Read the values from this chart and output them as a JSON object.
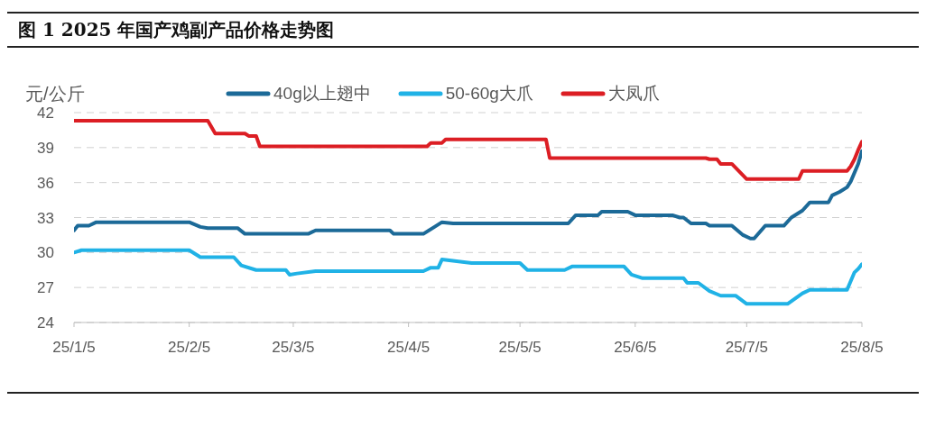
{
  "chart_data": {
    "type": "line",
    "title": "图 1 2025 年国产鸡副产品价格走势图",
    "ylabel": "元/公斤",
    "xlim": [
      "2025-01-05",
      "2025-08-05"
    ],
    "xticks": [
      {
        "value": "2025-01-05",
        "label": "25/1/5"
      },
      {
        "value": "2025-02-05",
        "label": "25/2/5"
      },
      {
        "value": "2025-03-05",
        "label": "25/3/5"
      },
      {
        "value": "2025-04-05",
        "label": "25/4/5"
      },
      {
        "value": "2025-05-05",
        "label": "25/5/5"
      },
      {
        "value": "2025-06-05",
        "label": "25/6/5"
      },
      {
        "value": "2025-07-05",
        "label": "25/7/5"
      },
      {
        "value": "2025-08-05",
        "label": "25/8/5"
      }
    ],
    "ylim": [
      24,
      42
    ],
    "yticks": [
      24,
      27,
      30,
      33,
      36,
      39,
      42
    ],
    "grid": "y",
    "legend": "top",
    "marker": "none",
    "line_style": "solid",
    "series": [
      {
        "name": "40g以上翅中",
        "color": "#1c6a98",
        "x": [
          "2025-01-05",
          "2025-01-06",
          "2025-01-09",
          "2025-01-11",
          "2025-02-05",
          "2025-02-08",
          "2025-02-10",
          "2025-02-18",
          "2025-02-20",
          "2025-03-09",
          "2025-03-11",
          "2025-03-31",
          "2025-04-01",
          "2025-04-09",
          "2025-04-12",
          "2025-04-14",
          "2025-04-17",
          "2025-05-18",
          "2025-05-20",
          "2025-05-26",
          "2025-05-27",
          "2025-06-03",
          "2025-06-05",
          "2025-06-15",
          "2025-06-17",
          "2025-06-18",
          "2025-06-20",
          "2025-06-24",
          "2025-06-25",
          "2025-07-01",
          "2025-07-04",
          "2025-07-06",
          "2025-07-07",
          "2025-07-10",
          "2025-07-15",
          "2025-07-17",
          "2025-07-20",
          "2025-07-22",
          "2025-07-27",
          "2025-07-28",
          "2025-07-30",
          "2025-08-01",
          "2025-08-02",
          "2025-08-04",
          "2025-08-05"
        ],
        "values": [
          31.9,
          32.3,
          32.3,
          32.6,
          32.6,
          32.2,
          32.1,
          32.1,
          31.6,
          31.6,
          31.9,
          31.9,
          31.6,
          31.6,
          32.2,
          32.6,
          32.5,
          32.5,
          33.2,
          33.2,
          33.5,
          33.5,
          33.2,
          33.2,
          33.0,
          33.0,
          32.5,
          32.5,
          32.3,
          32.3,
          31.5,
          31.2,
          31.2,
          32.3,
          32.3,
          33.0,
          33.6,
          34.3,
          34.3,
          34.9,
          35.2,
          35.6,
          36.1,
          37.6,
          38.7
        ]
      },
      {
        "name": "50-60g大爪",
        "color": "#20b2e6",
        "x": [
          "2025-01-05",
          "2025-01-07",
          "2025-02-05",
          "2025-02-08",
          "2025-02-17",
          "2025-02-19",
          "2025-02-23",
          "2025-03-03",
          "2025-03-04",
          "2025-03-06",
          "2025-03-11",
          "2025-04-09",
          "2025-04-11",
          "2025-04-13",
          "2025-04-14",
          "2025-04-17",
          "2025-04-22",
          "2025-05-05",
          "2025-05-07",
          "2025-05-17",
          "2025-05-19",
          "2025-06-02",
          "2025-06-04",
          "2025-06-07",
          "2025-06-18",
          "2025-06-19",
          "2025-06-22",
          "2025-06-25",
          "2025-06-28",
          "2025-07-02",
          "2025-07-05",
          "2025-07-16",
          "2025-07-20",
          "2025-07-22",
          "2025-08-01",
          "2025-08-03",
          "2025-08-04",
          "2025-08-05"
        ],
        "values": [
          30.0,
          30.2,
          30.2,
          29.6,
          29.6,
          28.9,
          28.5,
          28.5,
          28.1,
          28.2,
          28.4,
          28.4,
          28.7,
          28.7,
          29.4,
          29.3,
          29.1,
          29.1,
          28.5,
          28.5,
          28.8,
          28.8,
          28.1,
          27.8,
          27.8,
          27.4,
          27.4,
          26.7,
          26.3,
          26.3,
          25.6,
          25.6,
          26.5,
          26.8,
          26.8,
          28.3,
          28.6,
          29.0
        ]
      },
      {
        "name": "大凤爪",
        "color": "#dc1e24",
        "x": [
          "2025-01-05",
          "2025-02-10",
          "2025-02-12",
          "2025-02-20",
          "2025-02-21",
          "2025-02-23",
          "2025-02-24",
          "2025-04-10",
          "2025-04-11",
          "2025-04-14",
          "2025-04-15",
          "2025-05-12",
          "2025-05-13",
          "2025-06-24",
          "2025-06-25",
          "2025-06-27",
          "2025-06-28",
          "2025-07-01",
          "2025-07-05",
          "2025-07-19",
          "2025-07-20",
          "2025-08-01",
          "2025-08-02",
          "2025-08-03",
          "2025-08-04",
          "2025-08-05"
        ],
        "values": [
          41.3,
          41.3,
          40.2,
          40.2,
          40.0,
          40.0,
          39.1,
          39.1,
          39.4,
          39.4,
          39.7,
          39.7,
          38.1,
          38.1,
          38.0,
          38.0,
          37.6,
          37.6,
          36.3,
          36.3,
          37.0,
          37.0,
          37.4,
          38.0,
          38.8,
          39.5
        ]
      }
    ]
  }
}
